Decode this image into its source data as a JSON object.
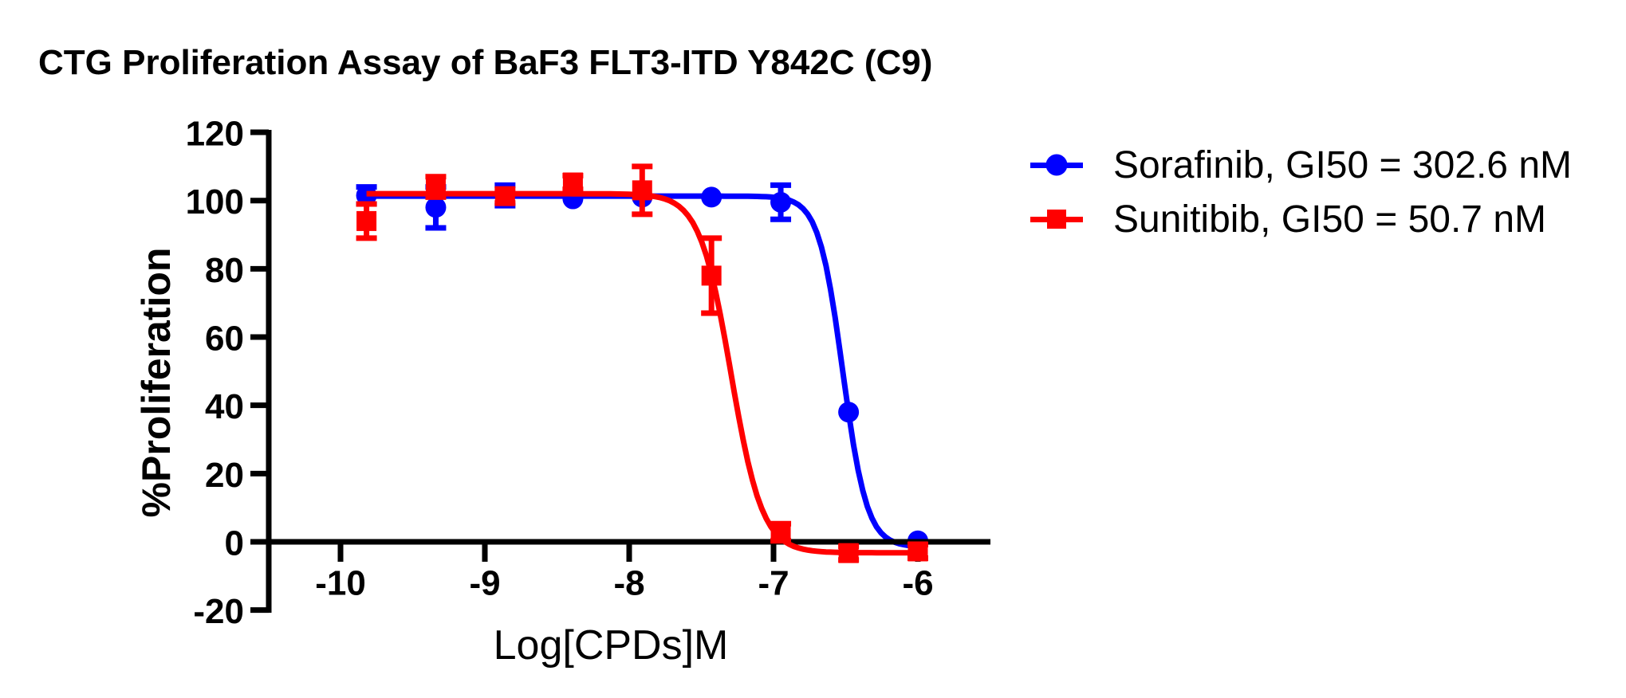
{
  "chart_data": {
    "type": "line",
    "title": "CTG Proliferation Assay of BaF3 FLT3-ITD Y842C (C9)",
    "xlabel": "Log[CPDs]M",
    "ylabel": "%Proliferation",
    "xlim": [
      -10.5,
      -5.5
    ],
    "ylim": [
      -20,
      120
    ],
    "x_ticks": [
      -10,
      -9,
      -8,
      -7,
      -6
    ],
    "y_ticks": [
      120,
      100,
      80,
      60,
      40,
      20,
      0,
      -20
    ],
    "grid": false,
    "legend_position": "top-right",
    "axis_color": "#000000",
    "x": [
      -9.82,
      -9.34,
      -8.86,
      -8.39,
      -7.91,
      -7.43,
      -6.95,
      -6.48,
      -6.0
    ],
    "series": [
      {
        "name": "Sorafinib",
        "label": "Sorafinib, GI50 = 302.6 nM",
        "gi50_nM": 302.6,
        "color": "#0000ff",
        "marker": "circle",
        "values": [
          101.5,
          98,
          101.5,
          100.5,
          101,
          101,
          99.5,
          38,
          0.3
        ],
        "errors": [
          2.5,
          6,
          3,
          0,
          0,
          0,
          5,
          0,
          0
        ],
        "fit": {
          "top": 101.3,
          "bottom": -1.5,
          "log_gi50": -6.52,
          "hill": 5.2
        }
      },
      {
        "name": "Sunitibib",
        "label": "Sunitibib, GI50 = 50.7 nM",
        "gi50_nM": 50.7,
        "color": "#ff0000",
        "marker": "square",
        "values": [
          94,
          104,
          101.3,
          105.3,
          103,
          78,
          2.8,
          -3.3,
          -2.8
        ],
        "errors": [
          5,
          3,
          2,
          2,
          7,
          11,
          2.5,
          2,
          2
        ],
        "fit": {
          "top": 102,
          "bottom": -3.2,
          "log_gi50": -7.295,
          "hill": 4.0
        }
      }
    ]
  }
}
